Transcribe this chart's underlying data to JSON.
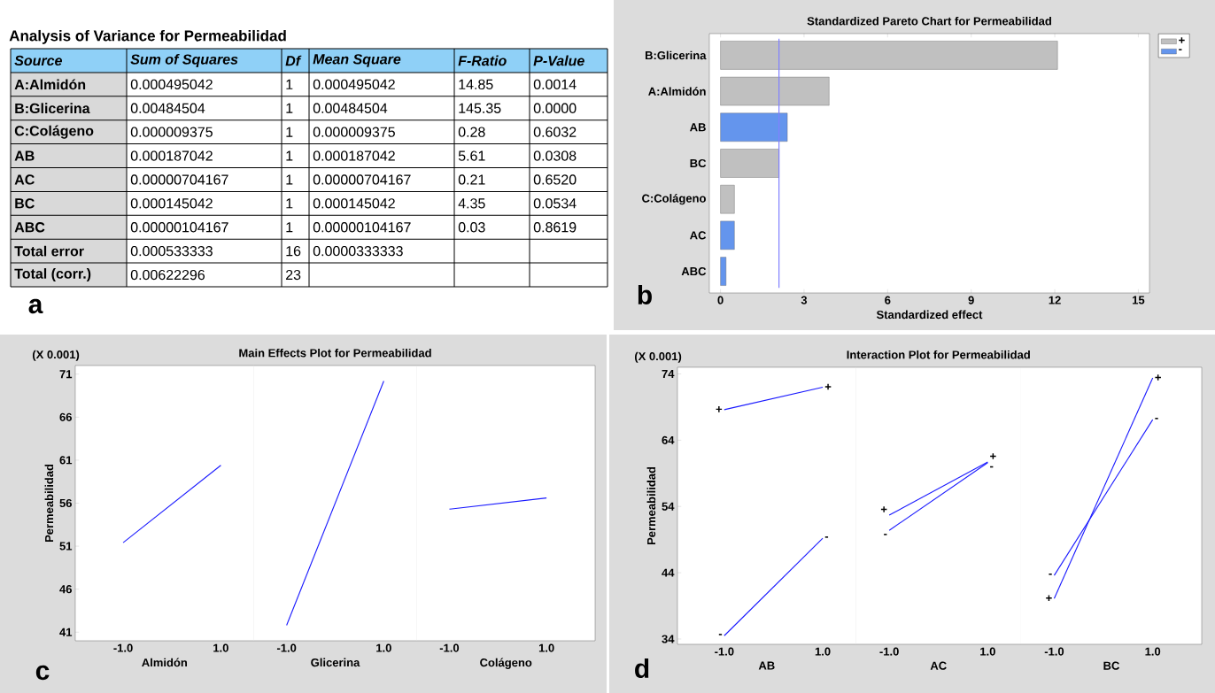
{
  "chart_data": [
    {
      "type": "other",
      "title": "Analysis of Variance for Permeabilidad",
      "categories": [
        "Source",
        "Sum of Squares",
        "Df",
        "Mean Square",
        "F-Ratio",
        "P-Value"
      ],
      "y_categories": [
        "A:Almidón",
        "B:Glicerina",
        "C:Colágeno",
        "AB",
        "AC",
        "BC",
        "ABC",
        "Total error",
        "Total (corr.)"
      ],
      "cell_labels": [
        [
          "0.000495042",
          "1",
          "0.000495042",
          "14.85",
          "0.0014"
        ],
        [
          "0.00484504",
          "1",
          "0.00484504",
          "145.35",
          "0.0000"
        ],
        [
          "0.000009375",
          "1",
          "0.000009375",
          "0.28",
          "0.6032"
        ],
        [
          "0.000187042",
          "1",
          "0.000187042",
          "5.61",
          "0.0308"
        ],
        [
          "0.00000704167",
          "1",
          "0.00000704167",
          "0.21",
          "0.6520"
        ],
        [
          "0.000145042",
          "1",
          "0.000145042",
          "4.35",
          "0.0534"
        ],
        [
          "0.00000104167",
          "1",
          "0.00000104167",
          "0.03",
          "0.8619"
        ],
        [
          "0.000533333",
          "16",
          "0.0000333333",
          null,
          null
        ],
        [
          "0.00622296",
          "23",
          null,
          null,
          null
        ]
      ],
      "annotations": [
        "a"
      ]
    },
    {
      "type": "bar",
      "orientation": "horizontal",
      "title": "Standardized Pareto Chart for Permeabilidad",
      "xlabel": "Standardized effect",
      "categories": [
        "B:Glicerina",
        "A:Almidón",
        "AB",
        "BC",
        "C:Colágeno",
        "AC",
        "ABC"
      ],
      "series": [
        {
          "name": "+",
          "color": "#c0c0c0",
          "values": [
            12.1,
            3.9,
            null,
            2.1,
            0.5,
            null,
            null
          ]
        },
        {
          "name": "-",
          "color": "#6495ed",
          "values": [
            null,
            null,
            2.4,
            null,
            null,
            0.5,
            0.2
          ]
        }
      ],
      "xlim": [
        -0.4,
        15.4
      ],
      "xticks": [
        0,
        3,
        6,
        9,
        12,
        15
      ],
      "ref_lines": [
        {
          "axis": "x",
          "value": 2.1,
          "color": "#8080ff"
        }
      ],
      "legend": "top right",
      "annotations": [
        "b"
      ]
    },
    {
      "type": "line",
      "ylabel": "Permeabilidad",
      "xlabel": "Almidón",
      "categories": [
        "-1.0",
        "1.0"
      ],
      "series": [
        {
          "values": [
            51.4,
            60.4
          ],
          "color": "#1a1aff"
        }
      ],
      "ylim": [
        40,
        72
      ],
      "yticks": [
        41,
        46,
        51,
        56,
        61,
        66,
        71
      ],
      "annotations": [
        "(X 0.001)",
        "c"
      ]
    },
    {
      "type": "line",
      "title": "Main Effects Plot for Permeabilidad",
      "xlabel": "Glicerina",
      "categories": [
        "-1.0",
        "1.0"
      ],
      "series": [
        {
          "values": [
            41.8,
            70.2
          ],
          "color": "#1a1aff"
        }
      ],
      "ylim": [
        40,
        72
      ],
      "tick_labels": "x"
    },
    {
      "type": "line",
      "xlabel": "Colágeno",
      "categories": [
        "-1.0",
        "1.0"
      ],
      "series": [
        {
          "values": [
            55.3,
            56.6
          ],
          "color": "#1a1aff"
        }
      ],
      "ylim": [
        40,
        72
      ],
      "tick_labels": "x"
    },
    {
      "type": "line",
      "ylabel": "Permeabilidad",
      "xlabel": "AB",
      "categories": [
        "-1.0",
        "1.0"
      ],
      "series": [
        {
          "name": "+",
          "values": [
            68.6,
            72.0
          ],
          "color": "#1a1aff"
        },
        {
          "name": "-",
          "values": [
            34.5,
            49.2
          ],
          "color": "#1a1aff"
        }
      ],
      "ylim": [
        33.2,
        75
      ],
      "yticks": [
        34,
        44,
        54,
        64,
        74
      ],
      "annotations": [
        "(X 0.001)",
        "d"
      ]
    },
    {
      "type": "line",
      "title": "Interaction Plot for Permeabilidad",
      "xlabel": "AC",
      "categories": [
        "-1.0",
        "1.0"
      ],
      "series": [
        {
          "name": "+",
          "values": [
            52.7,
            60.7
          ],
          "color": "#1a1aff"
        },
        {
          "name": "-",
          "values": [
            50.4,
            60.6
          ],
          "color": "#1a1aff"
        }
      ],
      "ylim": [
        33.2,
        75
      ],
      "tick_labels": "x"
    },
    {
      "type": "line",
      "xlabel": "BC",
      "categories": [
        "-1.0",
        "1.0"
      ],
      "series": [
        {
          "name": "+",
          "values": [
            40.1,
            73.4
          ],
          "color": "#1a1aff"
        },
        {
          "name": "-",
          "values": [
            43.6,
            67.1
          ],
          "color": "#1a1aff"
        }
      ],
      "ylim": [
        33.2,
        75
      ],
      "tick_labels": "x"
    }
  ]
}
